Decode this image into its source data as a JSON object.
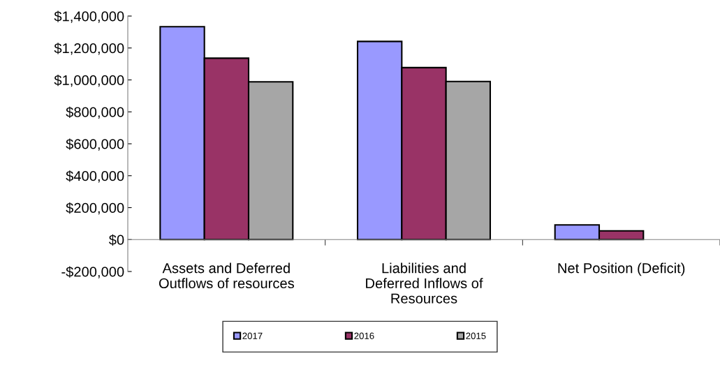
{
  "chart_data": {
    "type": "bar",
    "categories": [
      "Assets and Deferred\nOutflows of resources",
      "Liabilities and\nDeferred Inflows of\nResources",
      "Net Position (Deficit)"
    ],
    "series": [
      {
        "name": "2017",
        "color": "#9999ff",
        "values": [
          1333000,
          1241000,
          92000
        ]
      },
      {
        "name": "2016",
        "color": "#993366",
        "values": [
          1136000,
          1077000,
          55000
        ]
      },
      {
        "name": "2015",
        "color": "#a6a6a6",
        "values": [
          988000,
          990000,
          null
        ]
      }
    ],
    "ylim": [
      -200000,
      1400000
    ],
    "yticks": [
      {
        "value": -200000,
        "label": "-$200,000"
      },
      {
        "value": 0,
        "label": "$0"
      },
      {
        "value": 200000,
        "label": "$200,000"
      },
      {
        "value": 400000,
        "label": "$400,000"
      },
      {
        "value": 600000,
        "label": "$600,000"
      },
      {
        "value": 800000,
        "label": "$800,000"
      },
      {
        "value": 1000000,
        "label": "$1,000,000"
      },
      {
        "value": 1200000,
        "label": "$1,200,000"
      },
      {
        "value": 1400000,
        "label": "$1,400,000"
      }
    ],
    "grid": false,
    "legend": "bottom"
  }
}
